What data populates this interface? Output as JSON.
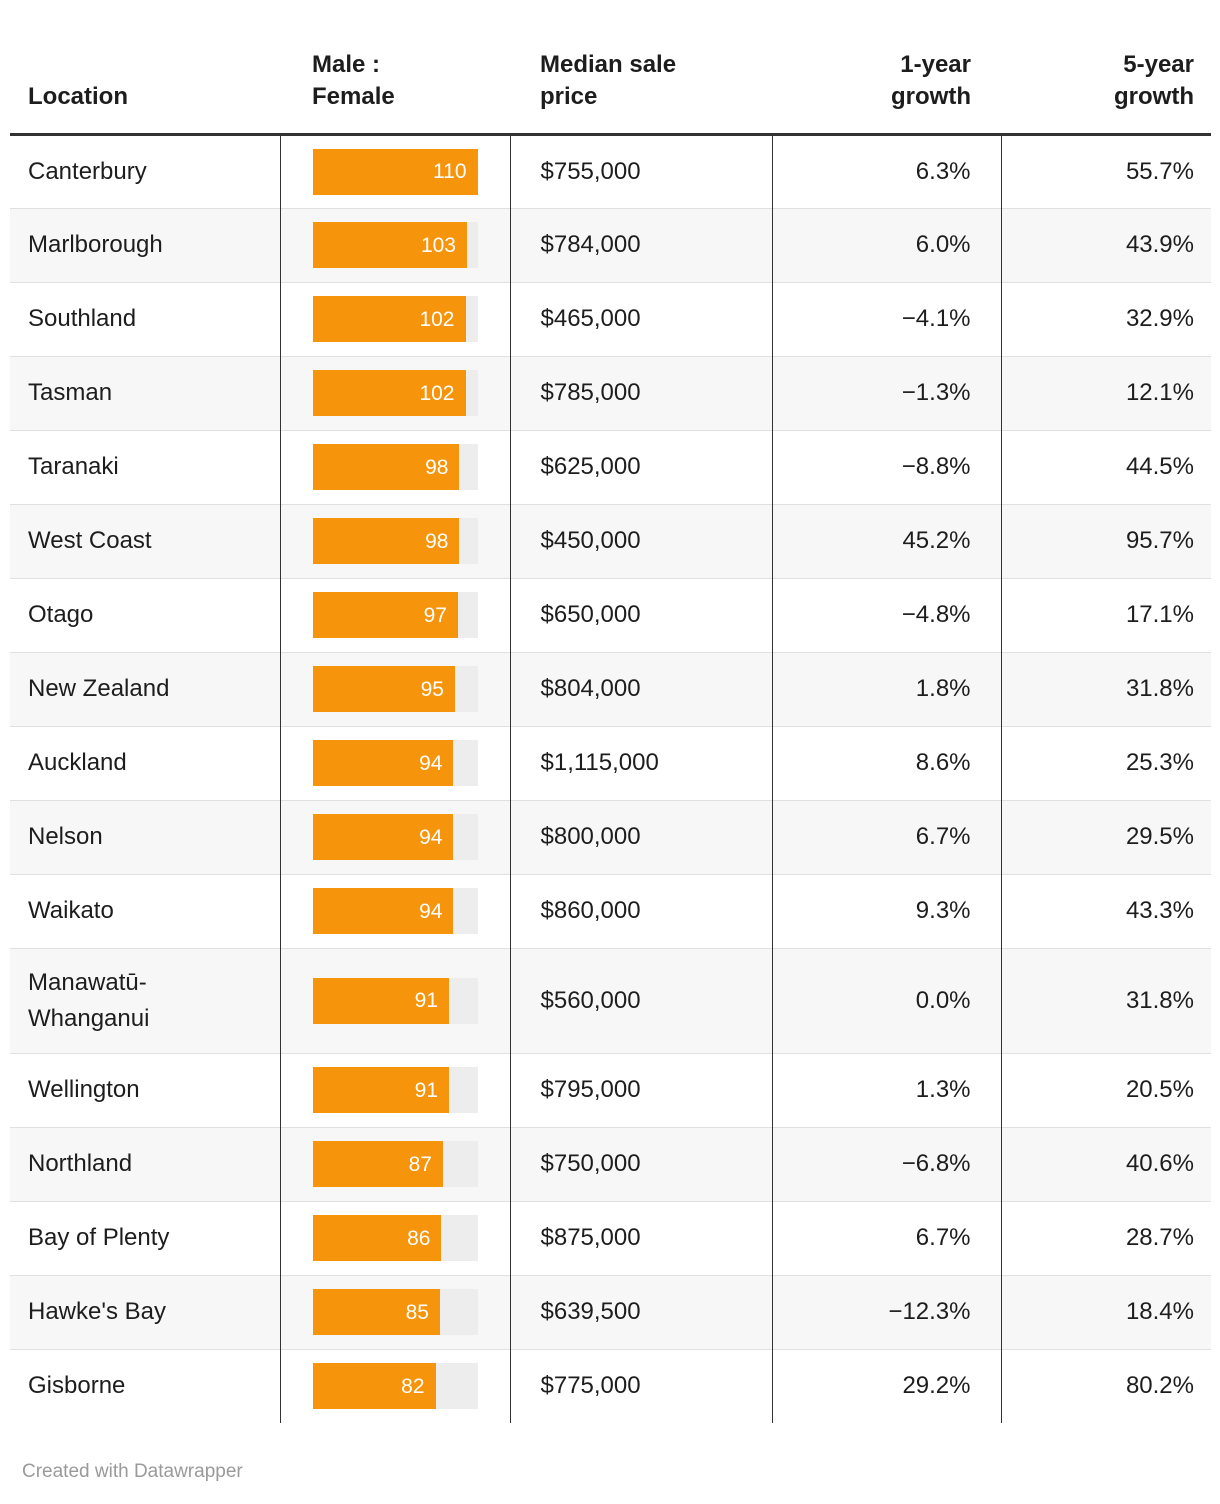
{
  "chart_data": {
    "type": "table",
    "columns": [
      {
        "key": "location",
        "label": "Location",
        "align": "left"
      },
      {
        "key": "male_female_ratio",
        "label": "Male :\nFemale",
        "align": "left",
        "render": "bar"
      },
      {
        "key": "median_sale_price",
        "label": "Median sale\nprice",
        "align": "left"
      },
      {
        "key": "one_year_growth",
        "label": "1-year\ngrowth",
        "align": "right"
      },
      {
        "key": "five_year_growth",
        "label": "5-year\ngrowth",
        "align": "right"
      }
    ],
    "bar_column": {
      "applies_to": "male_female_ratio",
      "scale_min": 0,
      "scale_max": 110,
      "bar_color": "#F6940C",
      "track_color": "#EDEDED",
      "label_color": "#FFFFFF"
    },
    "rows": [
      {
        "location": "Canterbury",
        "male_female_ratio": 110,
        "median_sale_price": "$755,000",
        "one_year_growth": "6.3%",
        "five_year_growth": "55.7%"
      },
      {
        "location": "Marlborough",
        "male_female_ratio": 103,
        "median_sale_price": "$784,000",
        "one_year_growth": "6.0%",
        "five_year_growth": "43.9%"
      },
      {
        "location": "Southland",
        "male_female_ratio": 102,
        "median_sale_price": "$465,000",
        "one_year_growth": "−4.1%",
        "five_year_growth": "32.9%"
      },
      {
        "location": "Tasman",
        "male_female_ratio": 102,
        "median_sale_price": "$785,000",
        "one_year_growth": "−1.3%",
        "five_year_growth": "12.1%"
      },
      {
        "location": "Taranaki",
        "male_female_ratio": 98,
        "median_sale_price": "$625,000",
        "one_year_growth": "−8.8%",
        "five_year_growth": "44.5%"
      },
      {
        "location": "West Coast",
        "male_female_ratio": 98,
        "median_sale_price": "$450,000",
        "one_year_growth": "45.2%",
        "five_year_growth": "95.7%"
      },
      {
        "location": "Otago",
        "male_female_ratio": 97,
        "median_sale_price": "$650,000",
        "one_year_growth": "−4.8%",
        "five_year_growth": "17.1%"
      },
      {
        "location": "New Zealand",
        "male_female_ratio": 95,
        "median_sale_price": "$804,000",
        "one_year_growth": "1.8%",
        "five_year_growth": "31.8%"
      },
      {
        "location": "Auckland",
        "male_female_ratio": 94,
        "median_sale_price": "$1,115,000",
        "one_year_growth": "8.6%",
        "five_year_growth": "25.3%"
      },
      {
        "location": "Nelson",
        "male_female_ratio": 94,
        "median_sale_price": "$800,000",
        "one_year_growth": "6.7%",
        "five_year_growth": "29.5%"
      },
      {
        "location": "Waikato",
        "male_female_ratio": 94,
        "median_sale_price": "$860,000",
        "one_year_growth": "9.3%",
        "five_year_growth": "43.3%"
      },
      {
        "location": "Manawatū-Whanganui",
        "male_female_ratio": 91,
        "median_sale_price": "$560,000",
        "one_year_growth": "0.0%",
        "five_year_growth": "31.8%"
      },
      {
        "location": "Wellington",
        "male_female_ratio": 91,
        "median_sale_price": "$795,000",
        "one_year_growth": "1.3%",
        "five_year_growth": "20.5%"
      },
      {
        "location": "Northland",
        "male_female_ratio": 87,
        "median_sale_price": "$750,000",
        "one_year_growth": "−6.8%",
        "five_year_growth": "40.6%"
      },
      {
        "location": "Bay of Plenty",
        "male_female_ratio": 86,
        "median_sale_price": "$875,000",
        "one_year_growth": "6.7%",
        "five_year_growth": "28.7%"
      },
      {
        "location": "Hawke's Bay",
        "male_female_ratio": 85,
        "median_sale_price": "$639,500",
        "one_year_growth": "−12.3%",
        "five_year_growth": "18.4%"
      },
      {
        "location": "Gisborne",
        "male_female_ratio": 82,
        "median_sale_price": "$775,000",
        "one_year_growth": "29.2%",
        "five_year_growth": "80.2%"
      }
    ],
    "layout_hints": {
      "zebra_striping": true,
      "header_rule_color": "#333333",
      "column_rule_color": "#333333"
    }
  },
  "footer": {
    "credit": "Created with Datawrapper"
  }
}
